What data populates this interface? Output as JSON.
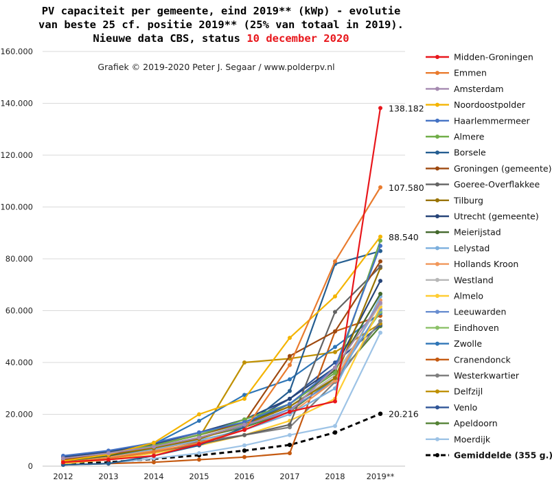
{
  "chart_data": {
    "type": "line",
    "title_lines": [
      "PV capaciteit per gemeente, eind 2019** (kWp) - evolutie",
      "van beste 25 cf. positie 2019** (25% van totaal in 2019)."
    ],
    "title_line3_prefix": "Nieuwe data CBS, status ",
    "title_line3_highlight": "10 december 2020",
    "credit": "Grafiek © 2019-2020 Peter J. Segaar / www.polderpv.nl",
    "categories": [
      "2012",
      "2013",
      "2014",
      "2015",
      "2016",
      "2017",
      "2018",
      "2019**"
    ],
    "y_ticks": [
      "0",
      "20.000",
      "40.000",
      "60.000",
      "80.000",
      "100.000",
      "120.000",
      "140.000",
      "160.000"
    ],
    "ylim": [
      0,
      160000
    ],
    "grid": true,
    "legend_position": "right",
    "series": [
      {
        "name": "Midden-Groningen",
        "color": "#e8161b",
        "values": [
          1500,
          2500,
          4000,
          8500,
          14000,
          21000,
          25000,
          138182
        ]
      },
      {
        "name": "Emmen",
        "color": "#e97b2e",
        "values": [
          1500,
          3000,
          5500,
          9000,
          14000,
          39000,
          79000,
          107580
        ]
      },
      {
        "name": "Amsterdam",
        "color": "#a58ab0",
        "values": [
          3000,
          5000,
          7500,
          11000,
          16000,
          21000,
          38000,
          63000
        ]
      },
      {
        "name": "Noordoostpolder",
        "color": "#f4b400",
        "values": [
          2000,
          4500,
          9000,
          20000,
          26000,
          49500,
          65500,
          88540
        ]
      },
      {
        "name": "Haarlemmermeer",
        "color": "#4472c4",
        "values": [
          4000,
          6000,
          9000,
          13000,
          17000,
          24000,
          38000,
          85000
        ]
      },
      {
        "name": "Almere",
        "color": "#70ad47",
        "values": [
          3000,
          5000,
          8000,
          12000,
          18000,
          24000,
          36000,
          87000
        ]
      },
      {
        "name": "Borsele",
        "color": "#255e91",
        "values": [
          500,
          1000,
          4000,
          8000,
          15000,
          29000,
          78000,
          83000
        ]
      },
      {
        "name": "Groningen (gemeente)",
        "color": "#9e480e",
        "values": [
          2500,
          4500,
          8000,
          12000,
          17000,
          42500,
          52000,
          79000
        ]
      },
      {
        "name": "Goeree-Overflakkee",
        "color": "#636363",
        "values": [
          1500,
          3000,
          5500,
          8500,
          12000,
          16000,
          59500,
          77000
        ]
      },
      {
        "name": "Tilburg",
        "color": "#997300",
        "values": [
          2500,
          4500,
          7000,
          10500,
          16000,
          23000,
          34000,
          76500
        ]
      },
      {
        "name": "Utrecht (gemeente)",
        "color": "#264478",
        "values": [
          3500,
          5500,
          8500,
          13000,
          18000,
          26000,
          38000,
          71500
        ]
      },
      {
        "name": "Meierijstad",
        "color": "#43682b",
        "values": [
          2000,
          4000,
          7000,
          11000,
          16000,
          24000,
          37000,
          66500
        ]
      },
      {
        "name": "Lelystad",
        "color": "#7cafdd",
        "values": [
          2000,
          4000,
          6500,
          10000,
          14000,
          20000,
          30000,
          65500
        ]
      },
      {
        "name": "Hollands Kroon",
        "color": "#f1975a",
        "values": [
          1500,
          3500,
          6000,
          10000,
          14000,
          20000,
          33000,
          64000
        ]
      },
      {
        "name": "Westland",
        "color": "#b7b7b7",
        "values": [
          3000,
          5500,
          8500,
          12500,
          17000,
          23000,
          35000,
          62500
        ]
      },
      {
        "name": "Almelo",
        "color": "#ffcd33",
        "values": [
          1000,
          2500,
          5000,
          8000,
          12000,
          17500,
          26000,
          61500
        ]
      },
      {
        "name": "Leeuwarden",
        "color": "#698ed0",
        "values": [
          2500,
          4500,
          7500,
          11000,
          15500,
          22000,
          33000,
          60500
        ]
      },
      {
        "name": "Eindhoven",
        "color": "#8cc168",
        "values": [
          3000,
          5000,
          8000,
          12000,
          16500,
          23000,
          34000,
          59500
        ]
      },
      {
        "name": "Zwolle",
        "color": "#2e75b6",
        "values": [
          2500,
          5000,
          8500,
          17500,
          27500,
          33500,
          46000,
          59000
        ]
      },
      {
        "name": "Cranendonck",
        "color": "#c55a11",
        "values": [
          500,
          1000,
          1500,
          2500,
          3500,
          5000,
          52000,
          58000
        ]
      },
      {
        "name": "Westerkwartier",
        "color": "#7f7f7f",
        "values": [
          2000,
          4000,
          6500,
          9500,
          12000,
          15000,
          32500,
          56000
        ]
      },
      {
        "name": "Delfzijl",
        "color": "#bf9000",
        "values": [
          1500,
          3500,
          6000,
          11000,
          40000,
          41500,
          44000,
          55000
        ]
      },
      {
        "name": "Venlo",
        "color": "#2f5597",
        "values": [
          2000,
          4000,
          7000,
          11000,
          16000,
          26000,
          40000,
          54500
        ]
      },
      {
        "name": "Apeldoorn",
        "color": "#548235",
        "values": [
          2500,
          4500,
          7000,
          11000,
          15000,
          21000,
          34000,
          54000
        ]
      },
      {
        "name": "Moerdijk",
        "color": "#9dc3e6",
        "values": [
          500,
          1000,
          3000,
          5000,
          8000,
          12000,
          15500,
          51500
        ]
      },
      {
        "name": "Gemiddelde (355 g.)",
        "color": "#000000",
        "dashed": true,
        "values": [
          800,
          1500,
          2800,
          4200,
          6000,
          8200,
          13000,
          20216
        ]
      }
    ],
    "end_labels": [
      {
        "text": "138.182",
        "value": 138182
      },
      {
        "text": "107.580",
        "value": 107580
      },
      {
        "text": "88.540",
        "value": 88540
      },
      {
        "text": "20.216",
        "value": 20216
      }
    ]
  }
}
